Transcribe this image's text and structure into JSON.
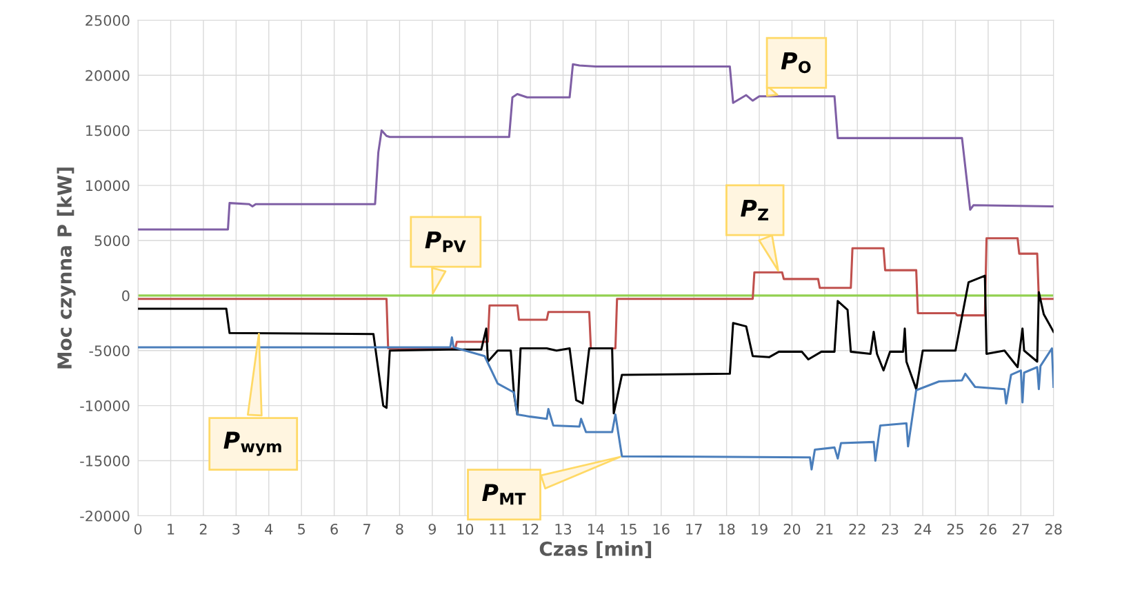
{
  "chart_data": {
    "type": "line",
    "xlabel": "Czas [min]",
    "ylabel": "Moc czynna P [kW]",
    "xlim": [
      0,
      28
    ],
    "xticks": [
      0,
      1,
      2,
      3,
      4,
      5,
      6,
      7,
      8,
      9,
      10,
      11,
      12,
      13,
      14,
      15,
      16,
      17,
      18,
      19,
      20,
      21,
      22,
      23,
      24,
      25,
      26,
      27,
      28
    ],
    "ylim": [
      -20000,
      25000
    ],
    "yticks": [
      -20000,
      -15000,
      -10000,
      -5000,
      0,
      5000,
      10000,
      15000,
      20000,
      25000
    ],
    "grid": true,
    "legend": false,
    "marker": "none",
    "line_style": "solid",
    "series": [
      {
        "color": "#7f5fa5",
        "x": [
          0,
          2.75,
          2.8,
          3.4,
          3.5,
          3.6,
          7.25,
          7.35,
          7.45,
          7.6,
          7.7,
          11.35,
          11.45,
          11.6,
          11.9,
          13.2,
          13.3,
          13.5,
          14,
          18.1,
          18.2,
          18.6,
          18.8,
          19,
          21.3,
          21.4,
          21.8,
          25.2,
          25.45,
          25.55,
          28
        ],
        "values": [
          6000,
          6000,
          8400,
          8300,
          8100,
          8300,
          8300,
          13000,
          15000,
          14500,
          14400,
          14400,
          18000,
          18300,
          18000,
          18000,
          21000,
          20900,
          20800,
          20800,
          17500,
          18200,
          17700,
          18100,
          18100,
          14300,
          14300,
          14300,
          7800,
          8200,
          8100
        ]
      },
      {
        "color": "#c0504d",
        "x": [
          0,
          7.6,
          7.65,
          9.7,
          9.75,
          10.7,
          10.75,
          11.6,
          11.65,
          12.5,
          12.55,
          13.8,
          13.85,
          14.6,
          14.65,
          18.8,
          18.85,
          19.7,
          19.75,
          20.8,
          20.85,
          21.8,
          21.85,
          22.8,
          22.85,
          23.8,
          23.85,
          25.0,
          25.05,
          25.9,
          25.95,
          26.9,
          26.95,
          27.5,
          27.55,
          28
        ],
        "values": [
          -300,
          -300,
          -4800,
          -4800,
          -4200,
          -4200,
          -900,
          -900,
          -2200,
          -2200,
          -1500,
          -1500,
          -4800,
          -4800,
          -300,
          -300,
          2100,
          2100,
          1500,
          1500,
          700,
          700,
          4300,
          4300,
          2300,
          2300,
          -1600,
          -1600,
          -1800,
          -1800,
          5200,
          5200,
          3800,
          3800,
          -300,
          -300
        ]
      },
      {
        "color": "#92d050",
        "x": [
          0,
          28
        ],
        "values": [
          0,
          0
        ]
      },
      {
        "color": "#000000",
        "x": [
          0,
          2.7,
          2.8,
          7.2,
          7.5,
          7.6,
          7.7,
          9.5,
          10.5,
          10.65,
          10.7,
          11.0,
          11.4,
          11.5,
          11.6,
          11.7,
          12.5,
          12.8,
          13.2,
          13.4,
          13.6,
          13.8,
          14.5,
          14.55,
          14.8,
          18.1,
          18.2,
          18.6,
          18.8,
          19.3,
          19.6,
          20.3,
          20.5,
          20.9,
          21.3,
          21.4,
          21.7,
          21.8,
          22.4,
          22.5,
          22.6,
          22.8,
          23.0,
          23.4,
          23.45,
          23.5,
          23.8,
          24.0,
          25.0,
          25.4,
          25.9,
          25.95,
          26.5,
          26.9,
          27.05,
          27.1,
          27.5,
          27.55,
          27.7,
          28
        ],
        "values": [
          -1200,
          -1200,
          -3400,
          -3500,
          -10000,
          -10200,
          -5000,
          -4900,
          -4900,
          -3000,
          -6000,
          -5000,
          -5000,
          -9000,
          -10800,
          -4800,
          -4800,
          -5000,
          -4800,
          -9500,
          -9800,
          -4800,
          -4800,
          -10700,
          -7200,
          -7100,
          -2500,
          -2800,
          -5500,
          -5600,
          -5100,
          -5100,
          -5800,
          -5100,
          -5100,
          -500,
          -1300,
          -5100,
          -5300,
          -3300,
          -5300,
          -6800,
          -5100,
          -5100,
          -3000,
          -6000,
          -8500,
          -5000,
          -5000,
          1200,
          1800,
          -5300,
          -5000,
          -6500,
          -3000,
          -5000,
          -6000,
          300,
          -1700,
          -3300
        ]
      },
      {
        "color": "#4a7ebb",
        "x": [
          0,
          9.55,
          9.6,
          9.65,
          10.6,
          11,
          11.5,
          11.6,
          12.0,
          12.5,
          12.55,
          12.7,
          13.5,
          13.55,
          13.7,
          14.5,
          14.6,
          14.8,
          20.55,
          20.6,
          20.7,
          21.3,
          21.4,
          21.5,
          22.5,
          22.55,
          22.7,
          23.5,
          23.55,
          23.8,
          24.5,
          25.2,
          25.3,
          25.6,
          26.5,
          26.55,
          26.7,
          27.0,
          27.05,
          27.1,
          27.5,
          27.55,
          27.6,
          27.95,
          28
        ],
        "values": [
          -4700,
          -4700,
          -3800,
          -4700,
          -5500,
          -8000,
          -8800,
          -10800,
          -11000,
          -11200,
          -10300,
          -11800,
          -11900,
          -11200,
          -12400,
          -12400,
          -10800,
          -14600,
          -14700,
          -15800,
          -14000,
          -13800,
          -14800,
          -13400,
          -13300,
          -15000,
          -11800,
          -11600,
          -13700,
          -8600,
          -7800,
          -7700,
          -7100,
          -8300,
          -8500,
          -9800,
          -7200,
          -6800,
          -9700,
          -7000,
          -6500,
          -8500,
          -6400,
          -4800,
          -8300
        ]
      }
    ],
    "annotations": [
      {
        "text": "P$_{O}$",
        "x": 19.2,
        "y": 18000
      },
      {
        "text": "P$_{Z}$",
        "x": 19.6,
        "y": 2100
      },
      {
        "text": "P$_{PV}$",
        "x": 9,
        "y": 0
      },
      {
        "text": "P$_{wym}$",
        "x": 3.7,
        "y": -3300
      },
      {
        "text": "P$_{MT}$",
        "x": 14.8,
        "y": -14600
      }
    ]
  }
}
